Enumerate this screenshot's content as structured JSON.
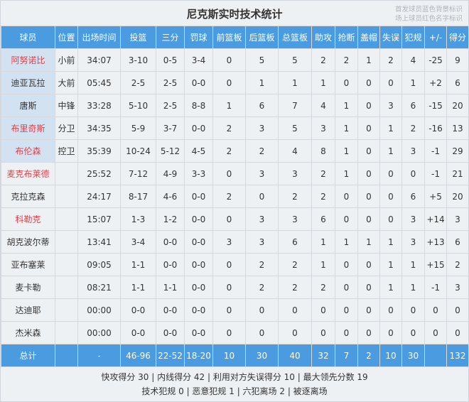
{
  "title": "尼克斯实时技术统计",
  "notes": [
    "首发球员蓝色背景标识",
    "场上球员红色名字标识"
  ],
  "colors": {
    "header_bg": "#4a9be0",
    "starter_bg": "#d3e2f1",
    "on_court_name": "#e0414b"
  },
  "headers": [
    "球员",
    "位置",
    "出场时间",
    "投篮",
    "三分",
    "罚球",
    "前篮板",
    "后篮板",
    "总篮板",
    "助攻",
    "抢断",
    "盖帽",
    "失误",
    "犯规",
    "+/-",
    "得分"
  ],
  "players": [
    {
      "starter": true,
      "on_court": true,
      "cells": [
        "阿努诺比",
        "小前",
        "34:07",
        "3-10",
        "0-5",
        "3-4",
        "0",
        "5",
        "5",
        "2",
        "2",
        "1",
        "2",
        "4",
        "-25",
        "9"
      ]
    },
    {
      "starter": true,
      "on_court": false,
      "cells": [
        "迪亚瓦拉",
        "大前",
        "05:45",
        "2-5",
        "2-5",
        "0-0",
        "0",
        "1",
        "1",
        "1",
        "0",
        "0",
        "0",
        "1",
        "+2",
        "6"
      ]
    },
    {
      "starter": true,
      "on_court": false,
      "cells": [
        "唐斯",
        "中锋",
        "33:28",
        "5-10",
        "2-5",
        "8-8",
        "1",
        "6",
        "7",
        "4",
        "1",
        "0",
        "3",
        "6",
        "-15",
        "20"
      ]
    },
    {
      "starter": true,
      "on_court": true,
      "cells": [
        "布里奇斯",
        "分卫",
        "34:35",
        "5-9",
        "3-7",
        "0-0",
        "2",
        "3",
        "5",
        "3",
        "1",
        "0",
        "1",
        "2",
        "-16",
        "13"
      ]
    },
    {
      "starter": true,
      "on_court": true,
      "cells": [
        "布伦森",
        "控卫",
        "35:39",
        "10-24",
        "5-12",
        "4-5",
        "2",
        "2",
        "4",
        "8",
        "1",
        "0",
        "1",
        "3",
        "-1",
        "29"
      ]
    },
    {
      "starter": false,
      "on_court": true,
      "cells": [
        "麦克布莱德",
        "",
        "25:52",
        "7-12",
        "4-9",
        "3-3",
        "0",
        "3",
        "3",
        "2",
        "1",
        "0",
        "0",
        "0",
        "-1",
        "21"
      ]
    },
    {
      "starter": false,
      "on_court": false,
      "cells": [
        "克拉克森",
        "",
        "24:17",
        "8-17",
        "4-6",
        "0-0",
        "2",
        "0",
        "2",
        "2",
        "0",
        "0",
        "0",
        "6",
        "+5",
        "20"
      ]
    },
    {
      "starter": false,
      "on_court": true,
      "cells": [
        "科勒克",
        "",
        "15:07",
        "1-3",
        "1-2",
        "0-0",
        "0",
        "3",
        "3",
        "6",
        "0",
        "0",
        "0",
        "3",
        "+14",
        "3"
      ]
    },
    {
      "starter": false,
      "on_court": false,
      "cells": [
        "胡克波尔蒂",
        "",
        "13:41",
        "3-4",
        "0-0",
        "0-0",
        "3",
        "3",
        "6",
        "1",
        "1",
        "1",
        "1",
        "3",
        "+13",
        "6"
      ]
    },
    {
      "starter": false,
      "on_court": false,
      "cells": [
        "亚布塞莱",
        "",
        "09:05",
        "1-1",
        "0-0",
        "0-0",
        "0",
        "2",
        "2",
        "1",
        "0",
        "0",
        "1",
        "1",
        "+15",
        "2"
      ]
    },
    {
      "starter": false,
      "on_court": false,
      "cells": [
        "麦卡勒",
        "",
        "08:21",
        "1-1",
        "1-1",
        "0-0",
        "0",
        "2",
        "2",
        "2",
        "0",
        "0",
        "1",
        "1",
        "-1",
        "3"
      ]
    },
    {
      "starter": false,
      "on_court": false,
      "cells": [
        "达迪耶",
        "",
        "00:00",
        "0-0",
        "0-0",
        "0-0",
        "0",
        "0",
        "0",
        "0",
        "0",
        "0",
        "0",
        "0",
        "0",
        "0"
      ]
    },
    {
      "starter": false,
      "on_court": false,
      "cells": [
        "杰米森",
        "",
        "00:00",
        "0-0",
        "0-0",
        "0-0",
        "0",
        "0",
        "0",
        "0",
        "0",
        "0",
        "0",
        "0",
        "0",
        "0"
      ]
    }
  ],
  "total": [
    "总计",
    "",
    "-",
    "46-96",
    "22-52",
    "18-20",
    "10",
    "30",
    "40",
    "32",
    "7",
    "2",
    "10",
    "30",
    "",
    "132"
  ],
  "footer": [
    "快攻得分 30 | 内线得分 42 | 利用对方失误得分 10 | 最大领先分数 19",
    "技术犯规 0 | 恶意犯规 1 | 六犯离场 2 | 被逐离场"
  ]
}
